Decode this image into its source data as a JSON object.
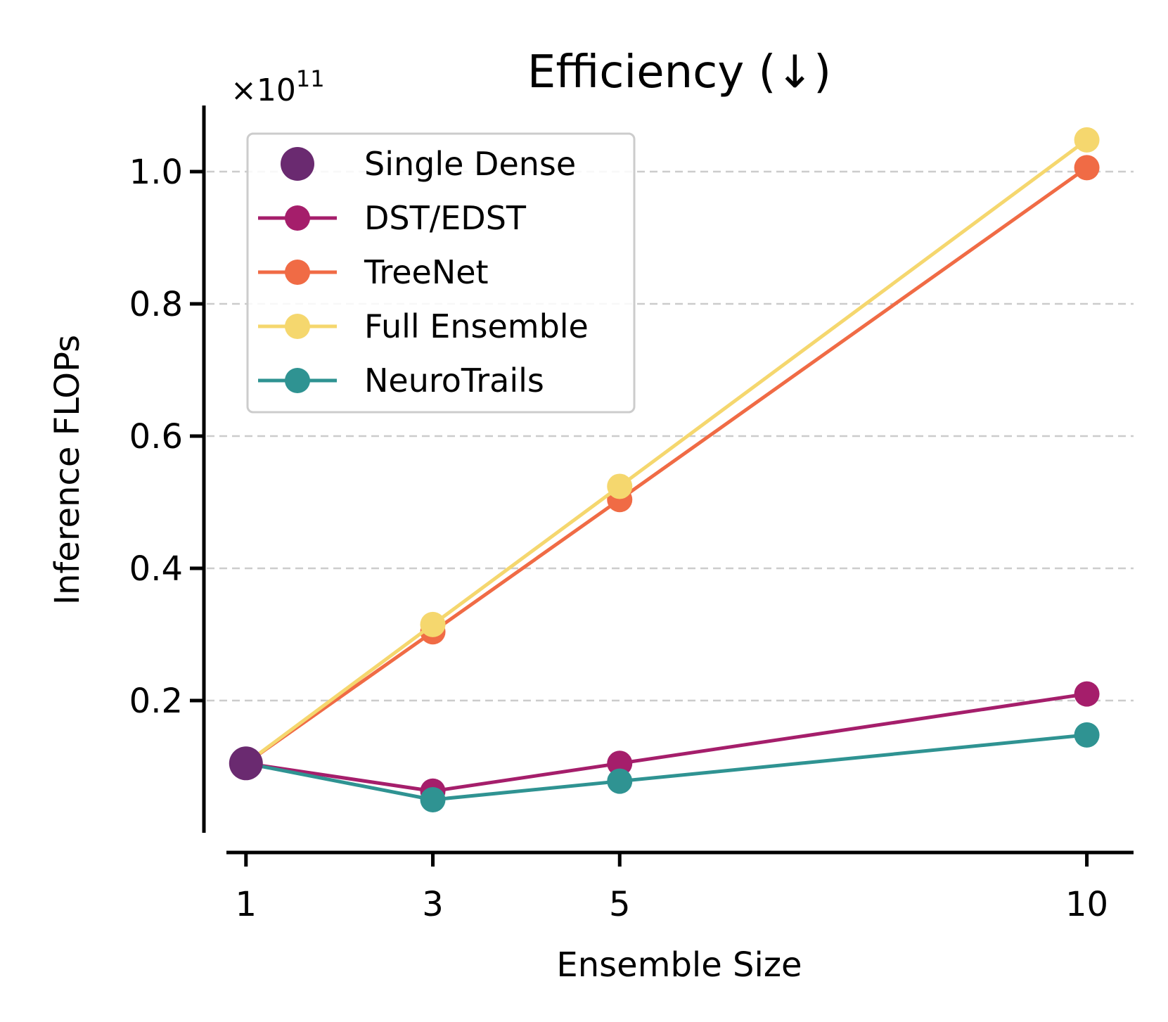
{
  "chart_data": {
    "type": "line",
    "title": "Efficiency (↓)",
    "xlabel": "Ensemble Size",
    "ylabel": "Inference FLOPs",
    "y_multiplier_base": "×10",
    "y_multiplier_exp": "11",
    "x": [
      1,
      3,
      5,
      10
    ],
    "x_tick_labels": [
      "1",
      "3",
      "5",
      "10"
    ],
    "xlim": [
      0.55,
      10.5
    ],
    "ylim": [
      0.0,
      1.1
    ],
    "y_ticks": [
      0.2,
      0.4,
      0.6,
      0.8,
      1.0
    ],
    "y_tick_labels": [
      "0.2",
      "0.4",
      "0.6",
      "0.8",
      "1.0"
    ],
    "grid": "y-dashed",
    "legend_position": "top-left",
    "series": [
      {
        "name": "Single Dense",
        "color": "#6a2a70",
        "marker_only": true,
        "x": [
          1
        ],
        "values": [
          0.105
        ]
      },
      {
        "name": "DST/EDST",
        "color": "#a51e6b",
        "x": [
          1,
          3,
          5,
          10
        ],
        "values": [
          0.105,
          0.063,
          0.105,
          0.21
        ]
      },
      {
        "name": "TreeNet",
        "color": "#f06b45",
        "x": [
          1,
          3,
          5,
          10
        ],
        "values": [
          0.105,
          0.304,
          0.504,
          1.006
        ]
      },
      {
        "name": "Full Ensemble",
        "color": "#f5d76e",
        "x": [
          1,
          3,
          5,
          10
        ],
        "values": [
          0.105,
          0.315,
          0.524,
          1.048
        ]
      },
      {
        "name": "NeuroTrails",
        "color": "#2f9392",
        "x": [
          1,
          3,
          5,
          10
        ],
        "values": [
          0.105,
          0.05,
          0.078,
          0.148
        ]
      }
    ]
  }
}
